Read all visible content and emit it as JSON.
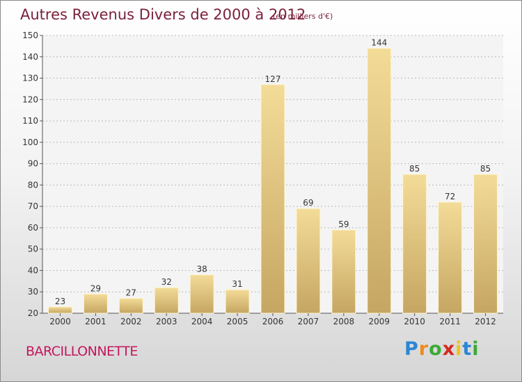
{
  "title": "Autres Revenus Divers de 2000 à 2012",
  "unit": "(en milliers d'€)",
  "commune": "BARCILLONNETTE",
  "logo": "Proxiti",
  "colors": {
    "title": "#7a1f3a",
    "commune": "#c4165c",
    "bar_light": "#f3dc98",
    "bar_dark": "#c5a662"
  },
  "chart_data": {
    "type": "bar",
    "title": "Autres Revenus Divers de 2000 à 2012",
    "subtitle": "(en milliers d'€)",
    "categories": [
      "2000",
      "2001",
      "2002",
      "2003",
      "2004",
      "2005",
      "2006",
      "2007",
      "2008",
      "2009",
      "2010",
      "2011",
      "2012"
    ],
    "values": [
      23,
      29,
      27,
      32,
      38,
      31,
      127,
      69,
      59,
      144,
      85,
      72,
      85
    ],
    "ylim": [
      20,
      150
    ],
    "yticks": [
      20,
      30,
      40,
      50,
      60,
      70,
      80,
      90,
      100,
      110,
      120,
      130,
      140,
      150
    ],
    "grid": true
  }
}
